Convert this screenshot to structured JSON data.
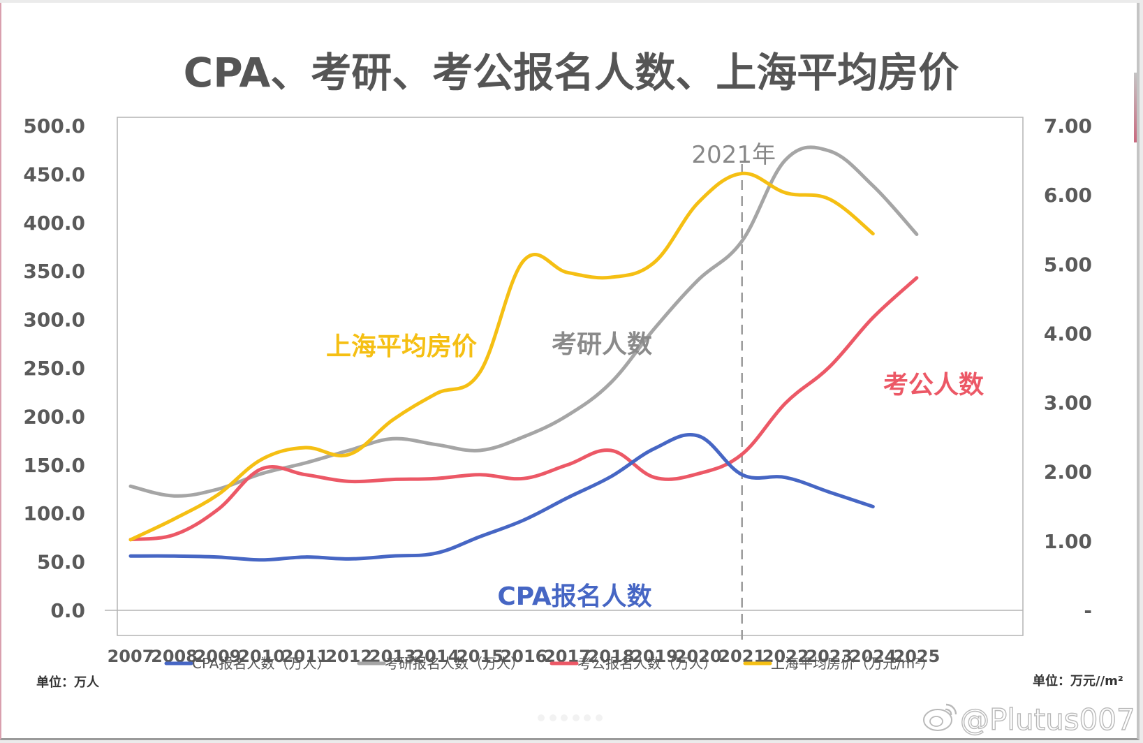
{
  "chart_data": {
    "type": "line",
    "title": "CPA、考研、考公报名人数、上海平均房价",
    "x": [
      "2007",
      "2008",
      "2009",
      "2010",
      "2011",
      "2012",
      "2013",
      "2014",
      "2015",
      "2016",
      "2017",
      "2018",
      "2019",
      "2020",
      "2021",
      "2022",
      "2023",
      "2024",
      "2025"
    ],
    "xlabel": "",
    "y_left": {
      "unit_label": "单位：万人",
      "range": [
        0,
        500
      ],
      "ticks": [
        "0.0",
        "50.0",
        "100.0",
        "150.0",
        "200.0",
        "250.0",
        "300.0",
        "350.0",
        "400.0",
        "450.0",
        "500.0"
      ]
    },
    "y_right": {
      "unit_label": "单位：万元//m²",
      "range": [
        0,
        7
      ],
      "ticks": [
        "-",
        "1.00",
        "2.00",
        "3.00",
        "4.00",
        "5.00",
        "6.00",
        "7.00"
      ]
    },
    "grid": false,
    "smooth": true,
    "series": [
      {
        "name": "CPA报名人数（万人）",
        "axis": "left",
        "color": "#4666c4",
        "annotation": "CPA报名人数",
        "values": [
          56,
          56,
          55,
          52,
          55,
          53,
          56,
          59,
          76,
          93,
          116,
          138,
          167,
          180,
          140,
          137,
          122,
          107,
          null
        ]
      },
      {
        "name": "考研报名人数（万人）",
        "axis": "left",
        "color": "#a5a5a5",
        "annotation": "考研人数",
        "values": [
          128,
          118,
          125,
          141,
          152,
          165,
          177,
          171,
          165,
          179,
          201,
          235,
          291,
          341,
          381,
          465,
          474,
          438,
          388
        ]
      },
      {
        "name": "考公报名人数（万人）",
        "axis": "left",
        "color": "#ec5866",
        "annotation": "考公人数",
        "values": [
          73,
          78,
          104,
          146,
          140,
          133,
          135,
          136,
          140,
          136,
          150,
          165,
          137,
          141,
          161,
          214,
          251,
          302,
          343
        ]
      },
      {
        "name": "上海平均房价（万元/m²）",
        "axis": "right",
        "color": "#f5bf13",
        "annotation": "上海平均房价",
        "values": [
          1.02,
          1.32,
          1.67,
          2.18,
          2.35,
          2.25,
          2.75,
          3.13,
          3.44,
          5.05,
          4.88,
          4.81,
          5.03,
          5.89,
          6.31,
          6.03,
          5.94,
          5.44,
          null
        ]
      }
    ],
    "reference_line": {
      "x": "2021",
      "label": "2021年",
      "style": "dashed"
    },
    "legend_position": "bottom"
  },
  "watermark": "@Plutus007"
}
